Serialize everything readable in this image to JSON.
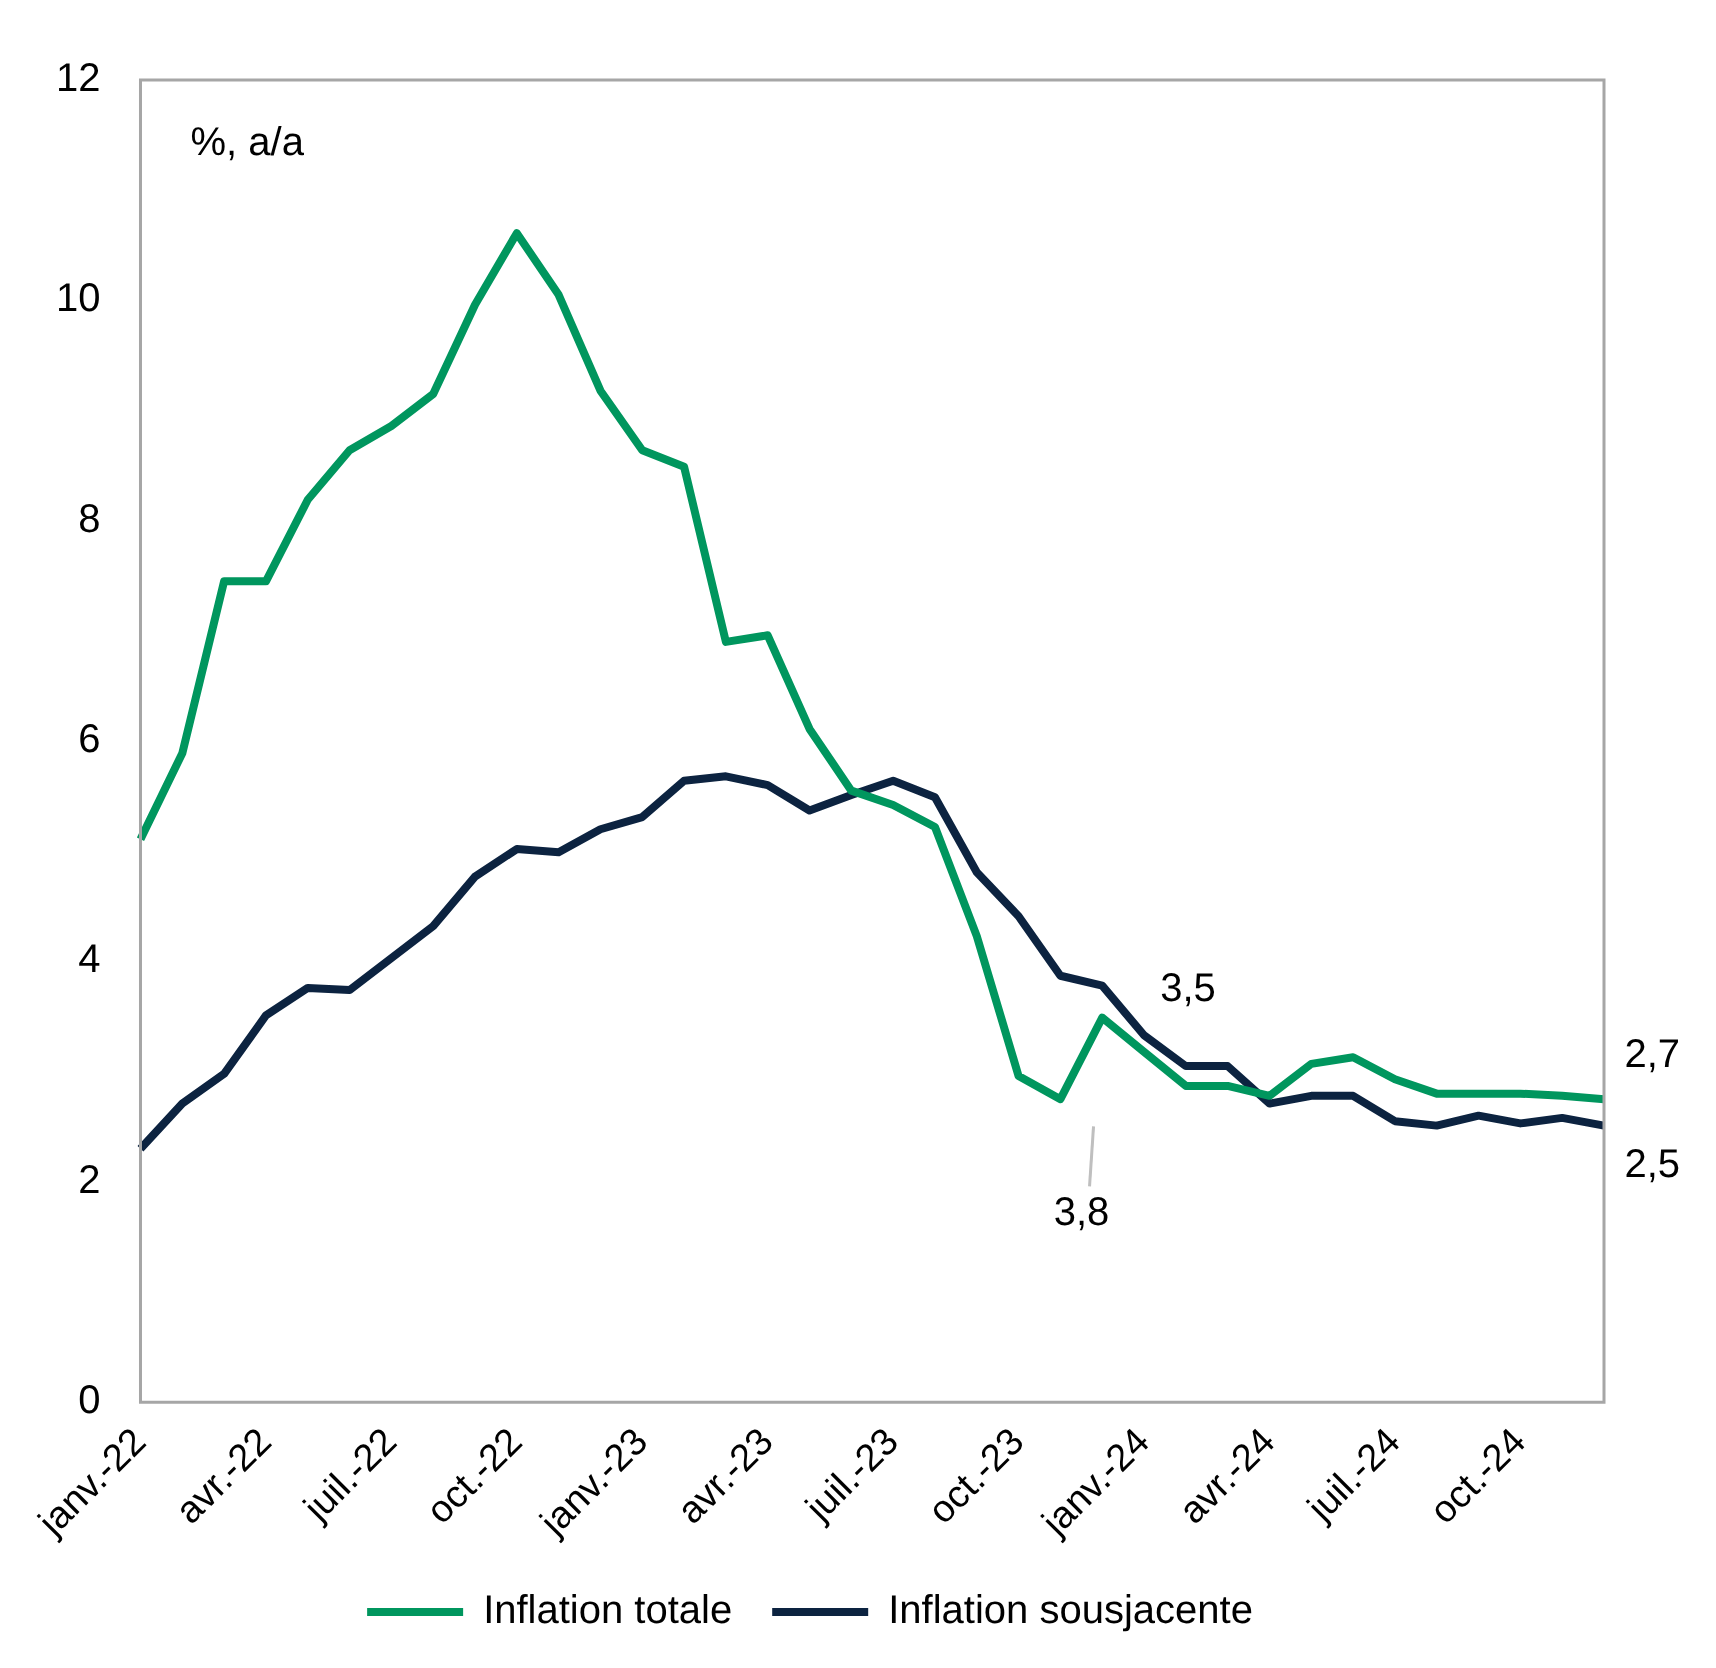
{
  "chart_data": {
    "type": "line",
    "ylabel": "%, a/a",
    "categories": [
      "janv.-22",
      null,
      null,
      "avr.-22",
      null,
      null,
      "juil.-22",
      null,
      null,
      "oct.-22",
      null,
      null,
      "janv.-23",
      null,
      null,
      "avr.-23",
      null,
      null,
      "juil.-23",
      null,
      null,
      "oct.-23",
      null,
      null,
      "janv.-24",
      null,
      null,
      "avr.-24",
      null,
      null,
      "juil.-24",
      null,
      null,
      "oct.-24",
      null,
      null
    ],
    "series": [
      {
        "name": "Inflation totale",
        "color": "#00965e",
        "values": [
          5.11,
          5.89,
          7.45,
          7.45,
          8.19,
          8.64,
          8.86,
          9.15,
          9.96,
          10.61,
          10.05,
          9.18,
          8.64,
          8.49,
          6.9,
          6.96,
          6.11,
          5.55,
          5.42,
          5.22,
          4.23,
          2.96,
          2.75,
          3.49,
          3.18,
          2.87,
          2.87,
          2.78,
          3.07,
          3.13,
          2.93,
          2.8,
          2.8,
          2.8,
          2.78,
          2.75
        ]
      },
      {
        "name": "Inflation sousjacente",
        "color": "#0c2340",
        "values": [
          2.3,
          2.71,
          2.98,
          3.51,
          3.76,
          3.74,
          4.03,
          4.32,
          4.77,
          5.02,
          4.99,
          5.2,
          5.31,
          5.64,
          5.68,
          5.6,
          5.37,
          5.51,
          5.64,
          5.49,
          4.81,
          4.41,
          3.87,
          3.78,
          3.33,
          3.05,
          3.05,
          2.71,
          2.78,
          2.78,
          2.55,
          2.51,
          2.6,
          2.53,
          2.58,
          2.51
        ]
      }
    ],
    "ylim": [
      0,
      12
    ],
    "yticks": [
      0,
      2,
      4,
      6,
      8,
      10,
      12
    ],
    "grid": false,
    "legend": "bottom",
    "marker": "none",
    "line_style": "solid",
    "annotations": [
      "3,8",
      {
        "text": "3,5",
        "x": "janv.-24",
        "y": 3.49
      },
      "2,7",
      "2,5"
    ]
  }
}
